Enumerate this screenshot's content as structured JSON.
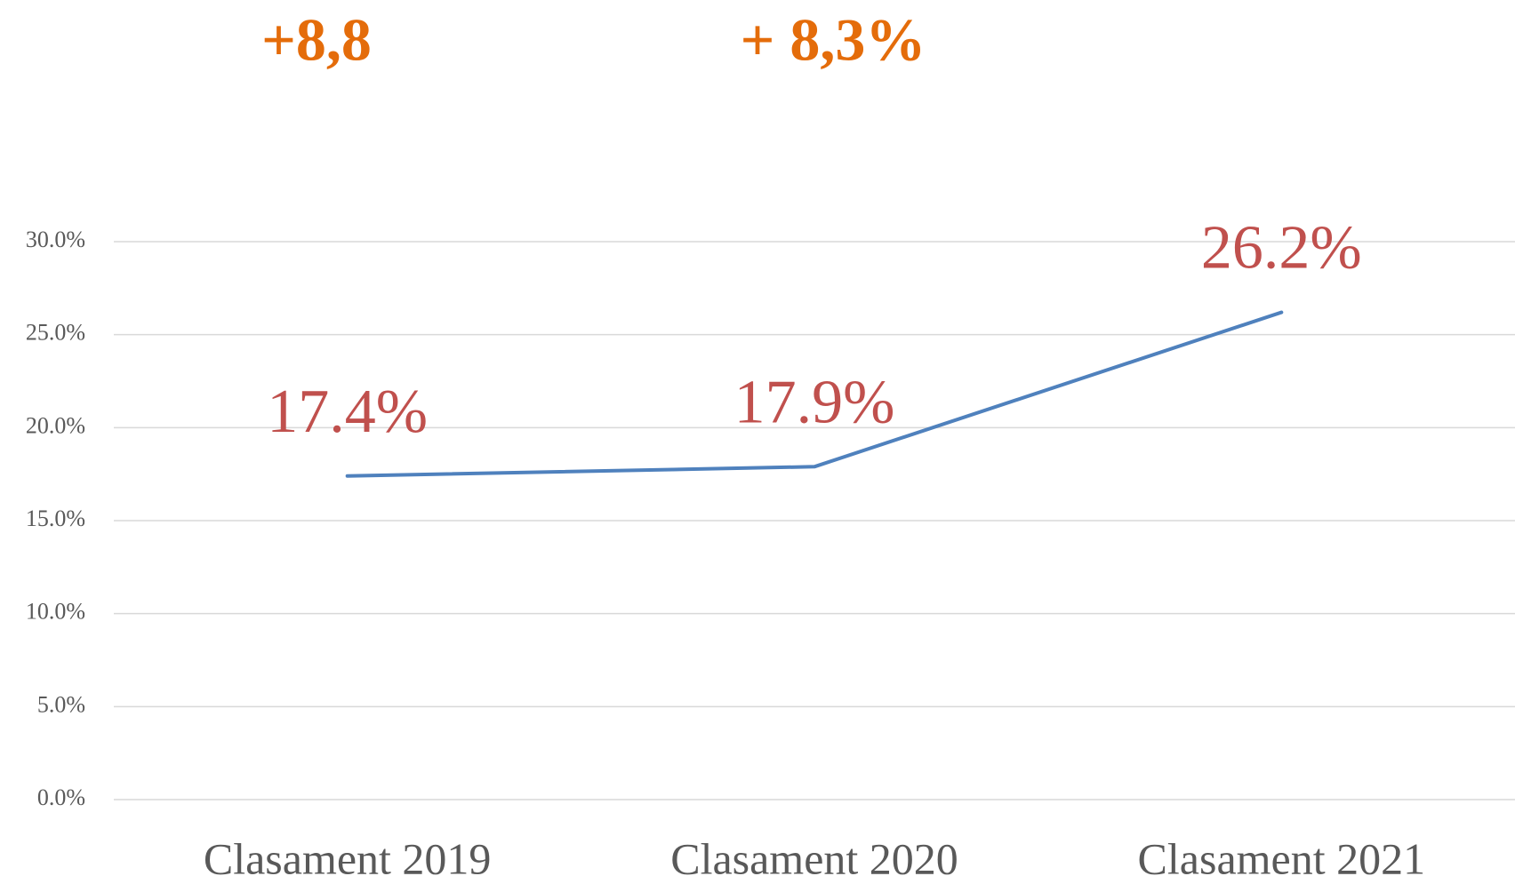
{
  "chart_data": {
    "type": "line",
    "annotations": [
      "+8,8",
      "+ 8,3%"
    ],
    "categories": [
      "Clasament 2019",
      "Clasament 2020",
      "Clasament 2021"
    ],
    "series": [
      {
        "name": "Share",
        "color": "#4f81bd",
        "values": [
          17.4,
          17.9,
          26.2
        ],
        "value_labels": [
          "17.4%",
          "17.9%",
          "26.2%"
        ]
      }
    ],
    "ylim": [
      0,
      30
    ],
    "yticks": [
      {
        "value": 0,
        "label": "0.0%"
      },
      {
        "value": 5,
        "label": "5.0%"
      },
      {
        "value": 10,
        "label": "10.0%"
      },
      {
        "value": 15,
        "label": "15.0%"
      },
      {
        "value": 20,
        "label": "20.0%"
      },
      {
        "value": 25,
        "label": "25.0%"
      },
      {
        "value": 30,
        "label": "30.0%"
      }
    ],
    "grid": true,
    "label_color": "#c0504d",
    "annotation_color": "#e46c0a"
  }
}
